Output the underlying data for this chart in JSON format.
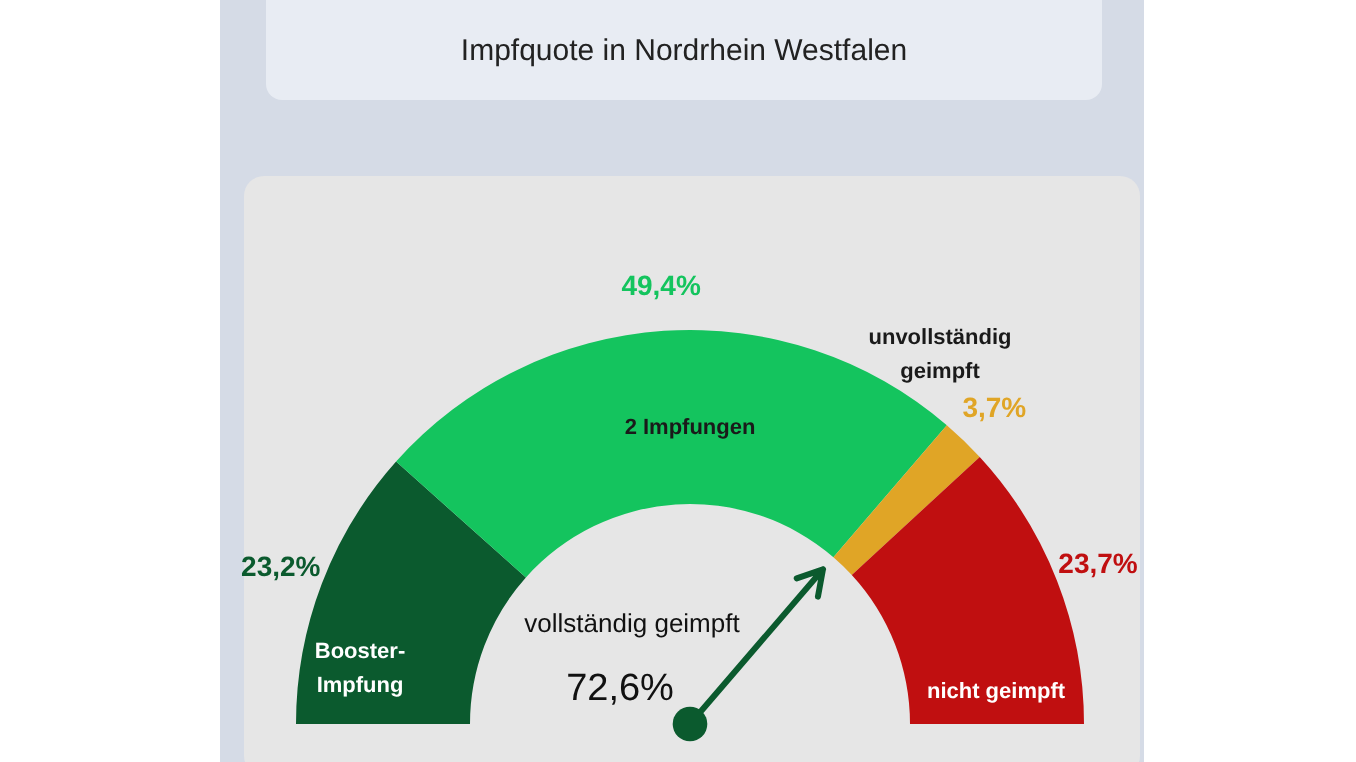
{
  "chart_data": {
    "type": "donut",
    "title": "Impfquote in Nordrhein Westfalen",
    "categories": [
      "Booster-Impfung",
      "2 Impfungen",
      "unvollständig geimpft",
      "nicht geimpft"
    ],
    "values": [
      23.2,
      49.4,
      3.7,
      23.7
    ],
    "colors": [
      "#0b5a2e",
      "#14c45e",
      "#e0a526",
      "#c00f10"
    ],
    "value_labels": [
      "23,2%",
      "49,4%",
      "3,7%",
      "23,7%"
    ],
    "needle": "2 Impfungen",
    "annotations": [
      "vollständig geimpft",
      "72,6%"
    ]
  }
}
